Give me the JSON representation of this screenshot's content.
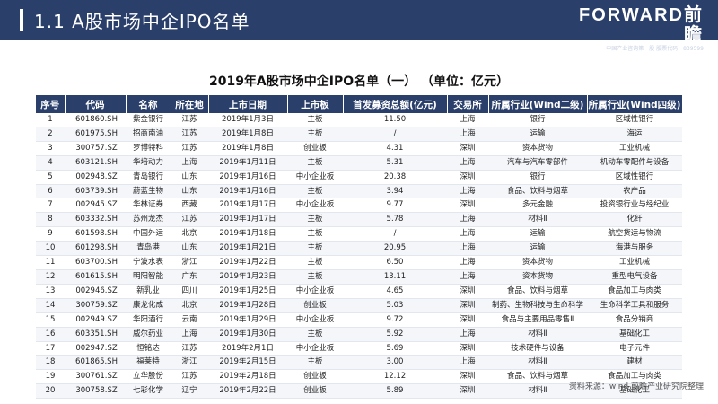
{
  "header": {
    "title": "1.1  A股市场中企IPO名单",
    "logo_text": "FORWARD前瞻",
    "logo_sub": "中国产业咨询第一股 股票代码：839599"
  },
  "table": {
    "title": "2019年A股市场中企IPO名单（一）  （单位：亿元）",
    "columns": [
      "序号",
      "代码",
      "名称",
      "所在地",
      "上市日期",
      "上市板",
      "首发募资总额(亿元)",
      "交易所",
      "所属行业(Wind二级)",
      "所属行业(Wind四级)"
    ],
    "rows": [
      [
        "1",
        "601860.SH",
        "紫金银行",
        "江苏",
        "2019年1月3日",
        "主板",
        "11.50",
        "上海",
        "银行",
        "区域性银行"
      ],
      [
        "2",
        "601975.SH",
        "招商南油",
        "江苏",
        "2019年1月8日",
        "主板",
        "/",
        "上海",
        "运输",
        "海运"
      ],
      [
        "3",
        "300757.SZ",
        "罗博特科",
        "江苏",
        "2019年1月8日",
        "创业板",
        "4.31",
        "深圳",
        "资本货物",
        "工业机械"
      ],
      [
        "4",
        "603121.SH",
        "华培动力",
        "上海",
        "2019年1月11日",
        "主板",
        "5.31",
        "上海",
        "汽车与汽车零部件",
        "机动车零配件与设备"
      ],
      [
        "5",
        "002948.SZ",
        "青岛银行",
        "山东",
        "2019年1月16日",
        "中小企业板",
        "20.38",
        "深圳",
        "银行",
        "区域性银行"
      ],
      [
        "6",
        "603739.SH",
        "蔚蓝生物",
        "山东",
        "2019年1月16日",
        "主板",
        "3.94",
        "上海",
        "食品、饮料与烟草",
        "农产品"
      ],
      [
        "7",
        "002945.SZ",
        "华林证券",
        "西藏",
        "2019年1月17日",
        "中小企业板",
        "9.77",
        "深圳",
        "多元金融",
        "投资银行业与经纪业"
      ],
      [
        "8",
        "603332.SH",
        "苏州龙杰",
        "江苏",
        "2019年1月17日",
        "主板",
        "5.78",
        "上海",
        "材料Ⅱ",
        "化纤"
      ],
      [
        "9",
        "601598.SH",
        "中国外运",
        "北京",
        "2019年1月18日",
        "主板",
        "/",
        "上海",
        "运输",
        "航空货运与物流"
      ],
      [
        "10",
        "601298.SH",
        "青岛港",
        "山东",
        "2019年1月21日",
        "主板",
        "20.95",
        "上海",
        "运输",
        "海港与服务"
      ],
      [
        "11",
        "603700.SH",
        "宁波水表",
        "浙江",
        "2019年1月22日",
        "主板",
        "6.50",
        "上海",
        "资本货物",
        "工业机械"
      ],
      [
        "12",
        "601615.SH",
        "明阳智能",
        "广东",
        "2019年1月23日",
        "主板",
        "13.11",
        "上海",
        "资本货物",
        "重型电气设备"
      ],
      [
        "13",
        "002946.SZ",
        "新乳业",
        "四川",
        "2019年1月25日",
        "中小企业板",
        "4.65",
        "深圳",
        "食品、饮料与烟草",
        "食品加工与肉类"
      ],
      [
        "14",
        "300759.SZ",
        "康龙化成",
        "北京",
        "2019年1月28日",
        "创业板",
        "5.03",
        "深圳",
        "制药、生物科技与生命科学",
        "生命科学工具和服务"
      ],
      [
        "15",
        "002949.SZ",
        "华阳酒行",
        "云南",
        "2019年1月29日",
        "中小企业板",
        "9.72",
        "深圳",
        "食品与主要用品零售Ⅱ",
        "食品分销商"
      ],
      [
        "16",
        "603351.SH",
        "威尔药业",
        "上海",
        "2019年1月30日",
        "主板",
        "5.92",
        "上海",
        "材料Ⅱ",
        "基础化工"
      ],
      [
        "17",
        "002947.SZ",
        "恒铭达",
        "江苏",
        "2019年2月1日",
        "中小企业板",
        "5.69",
        "深圳",
        "技术硬件与设备",
        "电子元件"
      ],
      [
        "18",
        "601865.SH",
        "福莱特",
        "浙江",
        "2019年2月15日",
        "主板",
        "3.00",
        "上海",
        "材料Ⅱ",
        "建材"
      ],
      [
        "19",
        "300761.SZ",
        "立华股份",
        "江苏",
        "2019年2月18日",
        "创业板",
        "12.12",
        "深圳",
        "食品、饮料与烟草",
        "食品加工与肉类"
      ],
      [
        "20",
        "300758.SZ",
        "七彩化学",
        "辽宁",
        "2019年2月22日",
        "创业板",
        "5.89",
        "深圳",
        "材料Ⅱ",
        "基础化工"
      ]
    ]
  },
  "footer": {
    "source": "资料来源：wind 前瞻产业研究院整理"
  }
}
